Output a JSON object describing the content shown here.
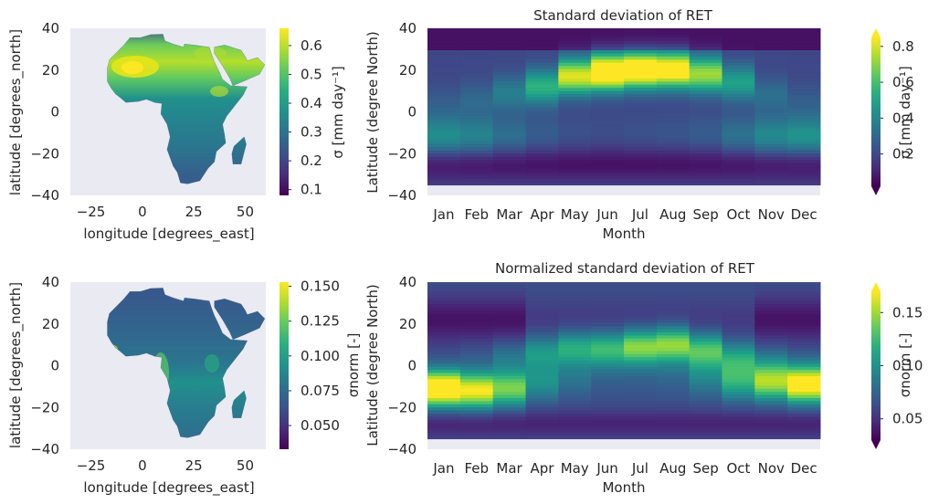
{
  "chart_data": [
    {
      "type": "heatmap",
      "subtype": "map",
      "title": "",
      "xlabel": "longitude [degrees_east]",
      "ylabel": "latitude [degrees_north]",
      "xticks": [
        "−25",
        "0",
        "25",
        "50"
      ],
      "yticks": [
        "40",
        "20",
        "0",
        "−20",
        "−40"
      ],
      "xlim": [
        -35,
        60
      ],
      "ylim": [
        -40,
        40
      ],
      "colorbar": {
        "label": "σ [mm day⁻¹]",
        "ticks": [
          "0.1",
          "0.2",
          "0.3",
          "0.4",
          "0.5",
          "0.6"
        ],
        "range": [
          0.08,
          0.66
        ],
        "colormap": "viridis"
      }
    },
    {
      "type": "heatmap",
      "title": "Standard deviation of RET",
      "xlabel": "Month",
      "ylabel": "Latitude (degree North)",
      "categories": [
        "Jan",
        "Feb",
        "Mar",
        "Apr",
        "May",
        "Jun",
        "Jul",
        "Aug",
        "Sep",
        "Oct",
        "Nov",
        "Dec"
      ],
      "yticks": [
        "40",
        "20",
        "0",
        "−20",
        "−40"
      ],
      "ylim": [
        -40,
        40
      ],
      "colorbar": {
        "label": "σ [mm day⁻¹]",
        "ticks": [
          "0.2",
          "0.4",
          "0.6",
          "0.8"
        ],
        "range": [
          0.02,
          0.85
        ],
        "extend": "both",
        "colormap": "viridis"
      }
    },
    {
      "type": "heatmap",
      "subtype": "map",
      "title": "",
      "xlabel": "longitude [degrees_east]",
      "ylabel": "latitude [degrees_north]",
      "xticks": [
        "−25",
        "0",
        "25",
        "50"
      ],
      "yticks": [
        "40",
        "20",
        "0",
        "−20",
        "−40"
      ],
      "xlim": [
        -35,
        60
      ],
      "ylim": [
        -40,
        40
      ],
      "colorbar": {
        "label": "σnorm [-]",
        "ticks": [
          "0.150",
          "0.125",
          "0.100",
          "0.075",
          "0.050"
        ],
        "range": [
          0.033,
          0.153
        ],
        "colormap": "viridis"
      }
    },
    {
      "type": "heatmap",
      "title": "Normalized standard deviation of RET",
      "xlabel": "Month",
      "ylabel": "Latitude (degree North)",
      "categories": [
        "Jan",
        "Feb",
        "Mar",
        "Apr",
        "May",
        "Jun",
        "Jul",
        "Aug",
        "Sep",
        "Oct",
        "Nov",
        "Dec"
      ],
      "yticks": [
        "40",
        "20",
        "0",
        "−20",
        "−40"
      ],
      "ylim": [
        -40,
        40
      ],
      "colorbar": {
        "label": "σnorm [-]",
        "ticks": [
          "0.15",
          "0.10",
          "0.05"
        ],
        "range": [
          0.03,
          0.17
        ],
        "extend": "both",
        "colormap": "viridis"
      }
    }
  ]
}
